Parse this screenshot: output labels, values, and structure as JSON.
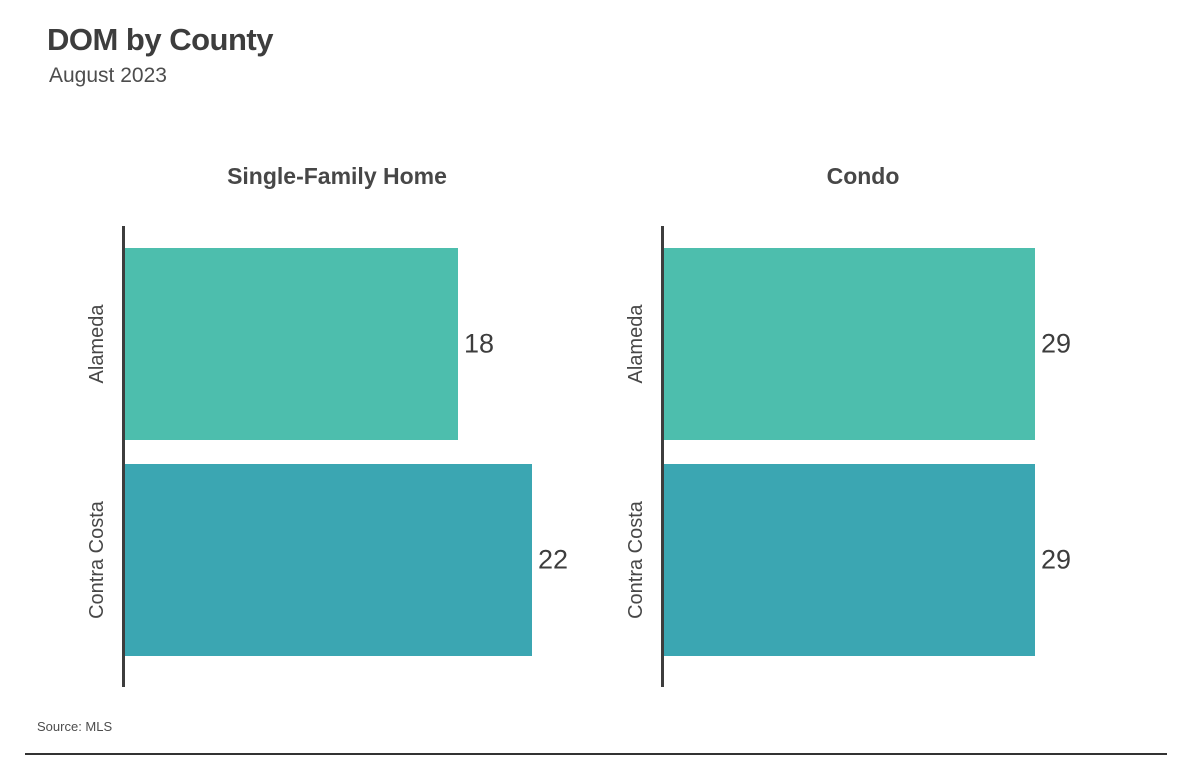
{
  "header": {
    "title": "DOM by County",
    "subtitle": "August 2023"
  },
  "footer": {
    "source": "Source: MLS"
  },
  "chart_data": {
    "type": "bar",
    "orientation": "horizontal",
    "title": "DOM by County",
    "subtitle": "August 2023",
    "categories": [
      "Alameda",
      "Contra Costa"
    ],
    "series": [
      {
        "name": "Single-Family Home",
        "values": [
          18,
          22
        ]
      },
      {
        "name": "Condo",
        "values": [
          29,
          29
        ]
      }
    ],
    "bar_colors": [
      "#4dbead",
      "#3ba6b2"
    ],
    "axis_color": "#3d3d3d",
    "value_labels_shown": true,
    "x_axis_ticks_shown": false,
    "xlabel": "",
    "ylabel": "",
    "legend": "none",
    "source": "Source: MLS"
  }
}
